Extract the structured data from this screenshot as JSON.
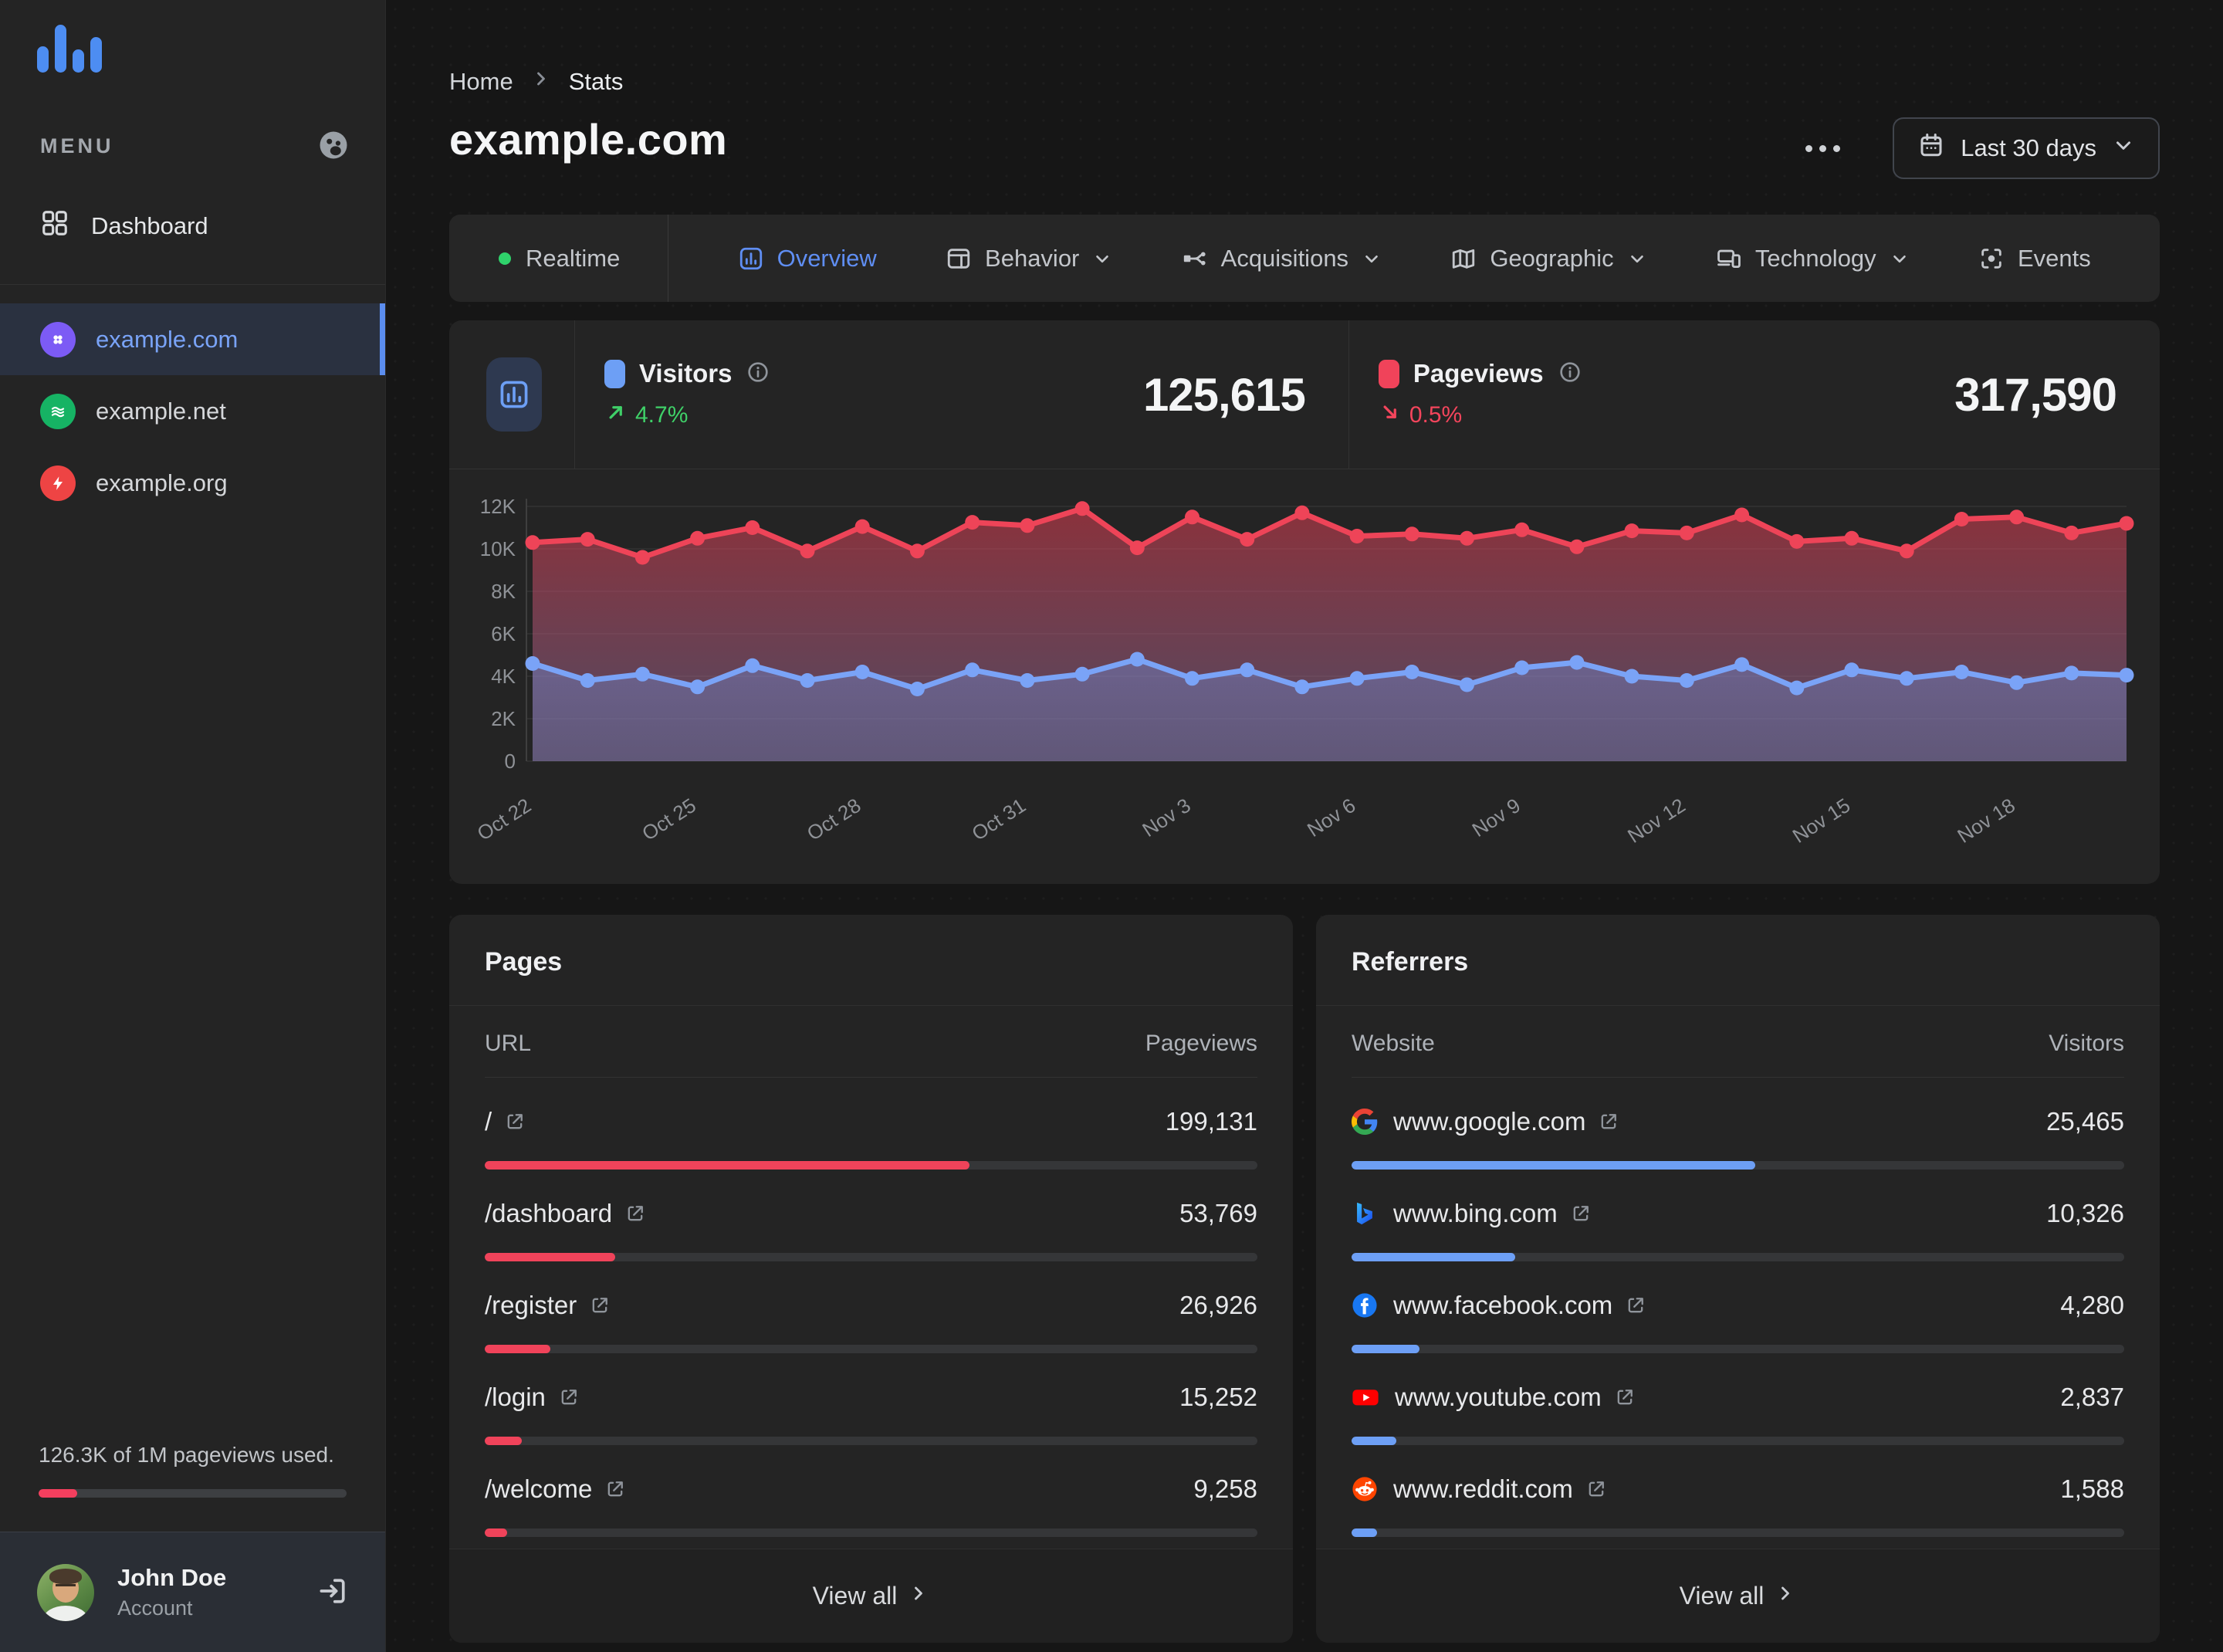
{
  "sidebar": {
    "menu_label": "MENU",
    "dashboard_label": "Dashboard",
    "sites": [
      {
        "name": "example.com",
        "active": true,
        "icon": "site-clover",
        "color": "#7c5bf5"
      },
      {
        "name": "example.net",
        "active": false,
        "icon": "site-waves",
        "color": "#16b364"
      },
      {
        "name": "example.org",
        "active": false,
        "icon": "site-lightning",
        "color": "#ee4444"
      }
    ],
    "usage_text": "126.3K of 1M pageviews used.",
    "usage_pct": 12.6,
    "usage_color": "#f43f5e",
    "account": {
      "name": "John Doe",
      "subtitle": "Account"
    }
  },
  "header": {
    "breadcrumb": {
      "home": "Home",
      "current": "Stats"
    },
    "title": "example.com",
    "date_range_label": "Last 30 days"
  },
  "tabs": [
    {
      "label": "Realtime",
      "icon": "realtime-dot",
      "active": false,
      "dropdown": false,
      "divider_after": true
    },
    {
      "label": "Overview",
      "icon": "overview",
      "active": true,
      "dropdown": false
    },
    {
      "label": "Behavior",
      "icon": "behavior",
      "active": false,
      "dropdown": true
    },
    {
      "label": "Acquisitions",
      "icon": "acquisitions",
      "active": false,
      "dropdown": true
    },
    {
      "label": "Geographic",
      "icon": "geographic",
      "active": false,
      "dropdown": true
    },
    {
      "label": "Technology",
      "icon": "technology",
      "active": false,
      "dropdown": true
    },
    {
      "label": "Events",
      "icon": "events",
      "active": false,
      "dropdown": false
    }
  ],
  "stats": {
    "visitors": {
      "label": "Visitors",
      "value": "125,615",
      "delta": "4.7%",
      "direction": "up",
      "swatch_color": "#6d9ff5",
      "delta_color": "#3fd068"
    },
    "pageviews": {
      "label": "Pageviews",
      "value": "317,590",
      "delta": "0.5%",
      "direction": "down",
      "swatch_color": "#f0435a",
      "delta_color": "#f4455c"
    }
  },
  "chart_data": {
    "type": "line",
    "title": "Visitors and pageviews over last 30 days",
    "x": [
      "Oct 22",
      "Oct 23",
      "Oct 24",
      "Oct 25",
      "Oct 26",
      "Oct 27",
      "Oct 28",
      "Oct 29",
      "Oct 30",
      "Oct 31",
      "Nov 1",
      "Nov 2",
      "Nov 3",
      "Nov 4",
      "Nov 5",
      "Nov 6",
      "Nov 7",
      "Nov 8",
      "Nov 9",
      "Nov 10",
      "Nov 11",
      "Nov 12",
      "Nov 13",
      "Nov 14",
      "Nov 15",
      "Nov 16",
      "Nov 17",
      "Nov 18",
      "Nov 19",
      "Nov 20"
    ],
    "tick_labels": [
      "Oct 22",
      "Oct 25",
      "Oct 28",
      "Oct 31",
      "Nov 3",
      "Nov 6",
      "Nov 9",
      "Nov 12",
      "Nov 15",
      "Nov 18"
    ],
    "tick_every": 3,
    "yticks": [
      "0",
      "2K",
      "4K",
      "6K",
      "8K",
      "10K",
      "12K"
    ],
    "ylim": [
      0,
      12000
    ],
    "grid": true,
    "legend_position": "none",
    "series": [
      {
        "name": "Pageviews",
        "color": "#ee4458",
        "values": [
          10300,
          10450,
          9600,
          10500,
          11000,
          9900,
          11050,
          9900,
          11250,
          11100,
          11900,
          10050,
          11500,
          10450,
          11700,
          10600,
          10700,
          10500,
          10900,
          10100,
          10850,
          10750,
          11600,
          10350,
          10500,
          9900,
          11400,
          11500,
          10750,
          11200
        ]
      },
      {
        "name": "Visitors",
        "color": "#7aa3f7",
        "values": [
          4600,
          3800,
          4100,
          3500,
          4500,
          3800,
          4200,
          3400,
          4300,
          3800,
          4100,
          4800,
          3900,
          4300,
          3500,
          3900,
          4200,
          3600,
          4400,
          4650,
          4000,
          3800,
          4550,
          3450,
          4300,
          3900,
          4200,
          3700,
          4150,
          4050
        ]
      }
    ]
  },
  "pages_card": {
    "title": "Pages",
    "col1": "URL",
    "col2": "Pageviews",
    "bar_color": "#f0435a",
    "view_all": "View all",
    "rows": [
      {
        "label": "/",
        "value": "199,131",
        "bar_pct": 62.7
      },
      {
        "label": "/dashboard",
        "value": "53,769",
        "bar_pct": 16.9
      },
      {
        "label": "/register",
        "value": "26,926",
        "bar_pct": 8.5
      },
      {
        "label": "/login",
        "value": "15,252",
        "bar_pct": 4.8
      },
      {
        "label": "/welcome",
        "value": "9,258",
        "bar_pct": 2.9
      }
    ]
  },
  "referrers_card": {
    "title": "Referrers",
    "col1": "Website",
    "col2": "Visitors",
    "bar_color": "#6d9ff5",
    "view_all": "View all",
    "rows": [
      {
        "label": "www.google.com",
        "icon": "google",
        "value": "25,465",
        "bar_pct": 52.2
      },
      {
        "label": "www.bing.com",
        "icon": "bing",
        "value": "10,326",
        "bar_pct": 21.2
      },
      {
        "label": "www.facebook.com",
        "icon": "facebook",
        "value": "4,280",
        "bar_pct": 8.8
      },
      {
        "label": "www.youtube.com",
        "icon": "youtube",
        "value": "2,837",
        "bar_pct": 5.8
      },
      {
        "label": "www.reddit.com",
        "icon": "reddit",
        "value": "1,588",
        "bar_pct": 3.3
      }
    ]
  }
}
